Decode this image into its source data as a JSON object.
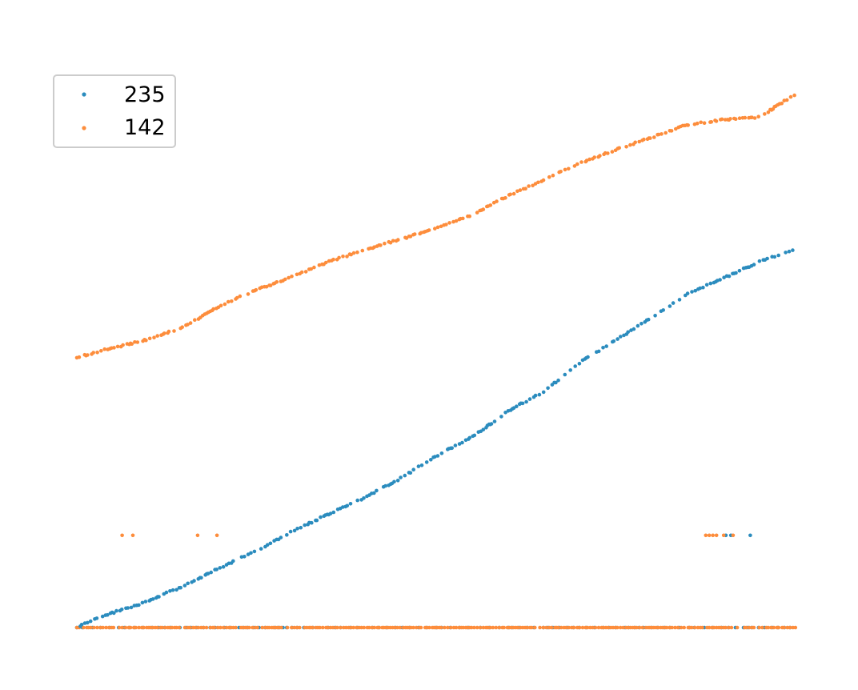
{
  "chart_data": {
    "type": "scatter",
    "xlim": [
      0,
      1000
    ],
    "ylim": [
      0,
      1000
    ],
    "grid": false,
    "axes_visible": false,
    "legend": {
      "placement": "upper-left",
      "entries": [
        "235",
        "142"
      ]
    },
    "series": [
      {
        "name": "235",
        "color": "#2b8cbe",
        "curve": [
          [
            0,
            0
          ],
          [
            30,
            19
          ],
          [
            90,
            45
          ],
          [
            150,
            78
          ],
          [
            200,
            112
          ],
          [
            260,
            150
          ],
          [
            300,
            180
          ],
          [
            340,
            205
          ],
          [
            400,
            242
          ],
          [
            450,
            278
          ],
          [
            500,
            320
          ],
          [
            550,
            355
          ],
          [
            600,
            404
          ],
          [
            650,
            440
          ],
          [
            700,
            494
          ],
          [
            750,
            536
          ],
          [
            800,
            578
          ],
          [
            850,
            622
          ],
          [
            900,
            652
          ],
          [
            950,
            682
          ],
          [
            1000,
            707
          ]
        ],
        "baseline_y": 0,
        "mid_cluster": {
          "y": 172,
          "x": [
            903,
            910,
            937
          ]
        }
      },
      {
        "name": "142",
        "color": "#fd8d3c",
        "curve": [
          [
            0,
            503
          ],
          [
            30,
            515
          ],
          [
            90,
            534
          ],
          [
            150,
            561
          ],
          [
            200,
            601
          ],
          [
            250,
            630
          ],
          [
            300,
            654
          ],
          [
            350,
            682
          ],
          [
            400,
            704
          ],
          [
            450,
            724
          ],
          [
            500,
            744
          ],
          [
            550,
            770
          ],
          [
            600,
            805
          ],
          [
            650,
            835
          ],
          [
            700,
            866
          ],
          [
            750,
            891
          ],
          [
            800,
            914
          ],
          [
            850,
            938
          ],
          [
            900,
            947
          ],
          [
            950,
            952
          ],
          [
            1000,
            995
          ]
        ],
        "baseline_y": 0,
        "mid_cluster": {
          "y": 172,
          "x": [
            63,
            78,
            168,
            195,
            875,
            880,
            885,
            890,
            900,
            913
          ]
        }
      }
    ]
  }
}
